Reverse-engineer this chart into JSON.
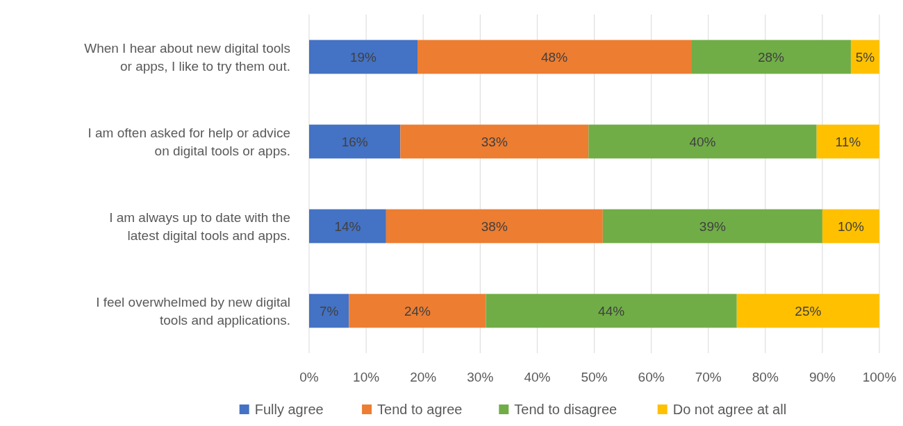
{
  "chart_data": {
    "type": "bar",
    "orientation": "horizontal",
    "stacked": true,
    "categories": [
      "When I hear about new digital tools or apps, I like to try them out.",
      "I am often asked for help or advice on digital tools or apps.",
      "I am always up to date with the latest digital tools and apps.",
      "I feel overwhelmed by new digital tools and applications."
    ],
    "series": [
      {
        "name": "Fully agree",
        "color": "#4472c4",
        "values": [
          19,
          16,
          13.5,
          7
        ],
        "value_labels": [
          "19%",
          "16%",
          "14%",
          "7%"
        ]
      },
      {
        "name": "Tend to agree",
        "color": "#ed7d31",
        "values": [
          48,
          33,
          38,
          24
        ],
        "value_labels": [
          "48%",
          "33%",
          "38%",
          "24%"
        ]
      },
      {
        "name": "Tend to disagree",
        "color": "#70ad47",
        "values": [
          28,
          40,
          38.5,
          44
        ],
        "value_labels": [
          "28%",
          "40%",
          "39%",
          "44%"
        ]
      },
      {
        "name": "Do not agree at all",
        "color": "#ffc000",
        "values": [
          5,
          11,
          10,
          25
        ],
        "value_labels": [
          "5%",
          "11%",
          "10%",
          "25%"
        ]
      }
    ],
    "xlim": [
      0,
      100
    ],
    "xticks": [
      {
        "value": 0,
        "label": "0%"
      },
      {
        "value": 10,
        "label": "10%"
      },
      {
        "value": 20,
        "label": "20%"
      },
      {
        "value": 30,
        "label": "30%"
      },
      {
        "value": 40,
        "label": "40%"
      },
      {
        "value": 50,
        "label": "50%"
      },
      {
        "value": 60,
        "label": "60%"
      },
      {
        "value": 70,
        "label": "70%"
      },
      {
        "value": 80,
        "label": "80%"
      },
      {
        "value": 90,
        "label": "90%"
      },
      {
        "value": 100,
        "label": "100%"
      }
    ],
    "grid": "x",
    "legend": "bottom"
  }
}
